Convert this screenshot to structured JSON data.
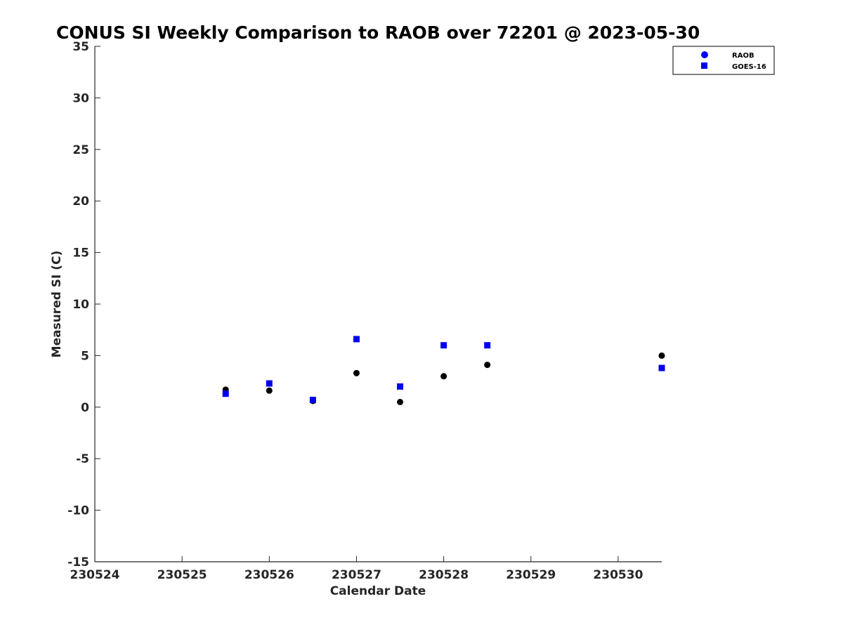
{
  "chart_data": {
    "type": "scatter",
    "title": "CONUS SI Weekly Comparison to RAOB over 72201 @ 2023-05-30",
    "xlabel": "Calendar Date",
    "ylabel": "Measured SI (C)",
    "xlim": [
      0,
      6.5
    ],
    "ylim": [
      -15,
      35
    ],
    "x_tick_values": [
      0,
      1,
      2,
      3,
      4,
      5,
      6
    ],
    "x_tick_labels": [
      "230524",
      "230525",
      "230526",
      "230527",
      "230528",
      "230529",
      "230530"
    ],
    "y_ticks": [
      35,
      30,
      25,
      20,
      15,
      10,
      5,
      0,
      -5,
      -10,
      -15
    ],
    "legend_position": "top-right",
    "series": [
      {
        "name": "RAOB",
        "marker": "circle",
        "color": "#000000",
        "legend_color": "#0000ee",
        "points": [
          {
            "x": 1.5,
            "y": 1.7
          },
          {
            "x": 2.0,
            "y": 1.6
          },
          {
            "x": 2.5,
            "y": 0.6
          },
          {
            "x": 3.0,
            "y": 3.3
          },
          {
            "x": 3.5,
            "y": 0.5
          },
          {
            "x": 4.0,
            "y": 3.0
          },
          {
            "x": 4.5,
            "y": 4.1
          },
          {
            "x": 6.5,
            "y": 5.0
          }
        ]
      },
      {
        "name": "GOES-16",
        "marker": "square",
        "color": "#0000ee",
        "legend_color": "#0000ee",
        "points": [
          {
            "x": 1.5,
            "y": 1.3
          },
          {
            "x": 2.0,
            "y": 2.3
          },
          {
            "x": 2.5,
            "y": 0.7
          },
          {
            "x": 3.0,
            "y": 6.6
          },
          {
            "x": 3.5,
            "y": 2.0
          },
          {
            "x": 4.0,
            "y": 6.0
          },
          {
            "x": 4.5,
            "y": 6.0
          },
          {
            "x": 6.5,
            "y": 3.8
          }
        ]
      }
    ]
  }
}
